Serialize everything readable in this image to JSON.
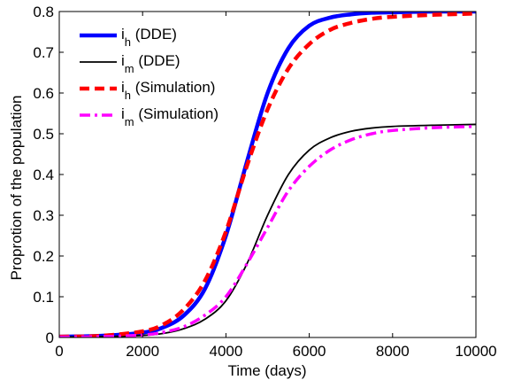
{
  "chart_data": {
    "type": "line",
    "title": "",
    "xlabel": "Time (days)",
    "ylabel": "Proprotion of the population",
    "xlim": [
      0,
      10000
    ],
    "ylim": [
      0,
      0.8
    ],
    "xticks": [
      0,
      2000,
      4000,
      6000,
      8000,
      10000
    ],
    "yticks": [
      0,
      0.1,
      0.2,
      0.3,
      0.4,
      0.5,
      0.6,
      0.7,
      0.8
    ],
    "xtick_labels": [
      "0",
      "2000",
      "4000",
      "6000",
      "8000",
      "10000"
    ],
    "ytick_labels": [
      "0",
      "0.1",
      "0.2",
      "0.3",
      "0.4",
      "0.5",
      "0.6",
      "0.7",
      "0.8"
    ],
    "grid": false,
    "legend_position": "top-left",
    "x": [
      0,
      1000,
      2000,
      2500,
      3000,
      3500,
      4000,
      4500,
      5000,
      5500,
      6000,
      6500,
      7000,
      7500,
      8000,
      9000,
      10000
    ],
    "series": [
      {
        "base": "i",
        "sub": "h",
        "suffix": " (DDE)",
        "color": "#0000ff",
        "style": "solid",
        "width": 4.5,
        "values": [
          0.002,
          0.004,
          0.012,
          0.025,
          0.055,
          0.12,
          0.25,
          0.43,
          0.6,
          0.71,
          0.765,
          0.785,
          0.793,
          0.797,
          0.798,
          0.8,
          0.8
        ]
      },
      {
        "base": "i",
        "sub": "m",
        "suffix": " (DDE)",
        "color": "#000000",
        "style": "solid",
        "width": 1.8,
        "values": [
          0.001,
          0.002,
          0.005,
          0.01,
          0.022,
          0.045,
          0.09,
          0.18,
          0.3,
          0.4,
          0.46,
          0.49,
          0.506,
          0.514,
          0.518,
          0.521,
          0.523
        ]
      },
      {
        "base": "i",
        "sub": "h",
        "suffix": " (Simulation)",
        "color": "#ff0000",
        "style": "dashed",
        "width": 4.5,
        "values": [
          0.002,
          0.004,
          0.015,
          0.032,
          0.07,
          0.14,
          0.26,
          0.42,
          0.56,
          0.66,
          0.72,
          0.755,
          0.772,
          0.782,
          0.787,
          0.792,
          0.795
        ]
      },
      {
        "base": "i",
        "sub": "m",
        "suffix": " (Simulation)",
        "color": "#ff00ff",
        "style": "dashdot",
        "width": 3.5,
        "values": [
          0.001,
          0.002,
          0.006,
          0.013,
          0.027,
          0.055,
          0.1,
          0.18,
          0.27,
          0.36,
          0.42,
          0.46,
          0.485,
          0.5,
          0.508,
          0.515,
          0.518
        ]
      }
    ]
  }
}
